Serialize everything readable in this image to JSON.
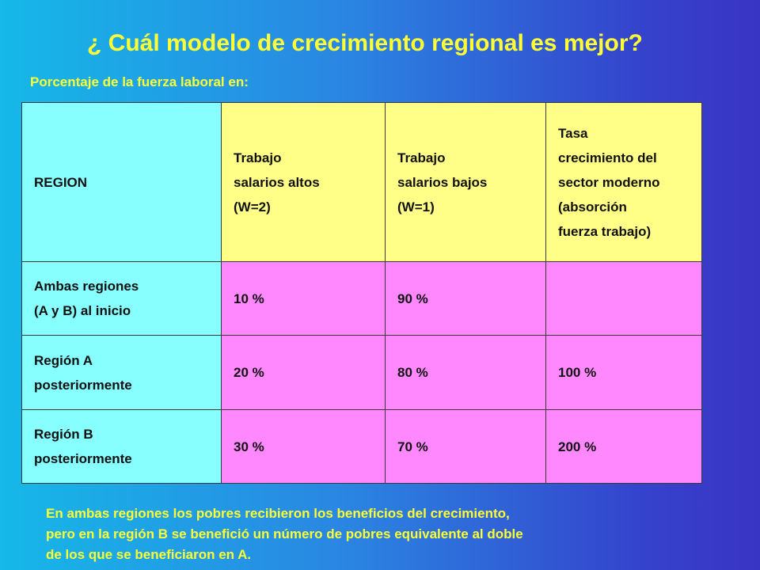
{
  "title": "¿ Cuál modelo de crecimiento regional es mejor?",
  "subtitle": "Porcentaje de la fuerza laboral en:",
  "table": {
    "headers": [
      "REGION",
      "Trabajo\nsalarios altos\n(W=2)",
      "Trabajo\nsalarios bajos\n(W=1)",
      "Tasa\ncrecimiento del\nsector moderno\n(absorción\nfuerza trabajo)"
    ],
    "rows": [
      {
        "region": "Ambas regiones\n(A y B) al inicio",
        "high": "10 %",
        "low": "90 %",
        "growth": ""
      },
      {
        "region": "Región A\nposteriormente",
        "high": "20 %",
        "low": "80 %",
        "growth": "100 %"
      },
      {
        "region": "Región B\nposteriormente",
        "high": "30 %",
        "low": "70 %",
        "growth": "200 %"
      }
    ]
  },
  "footer": "En ambas regiones los pobres recibieron los beneficios del crecimiento,\npero en la región B se benefició un número de pobres equivalente al doble\nde los que se beneficiaron en A.",
  "colors": {
    "title": "#ffff33",
    "region_column": "#88ffff",
    "header_row": "#ffff88",
    "data_cells": "#ff88ff",
    "background_left": "#16b8e8",
    "background_right": "#3a34c4"
  }
}
